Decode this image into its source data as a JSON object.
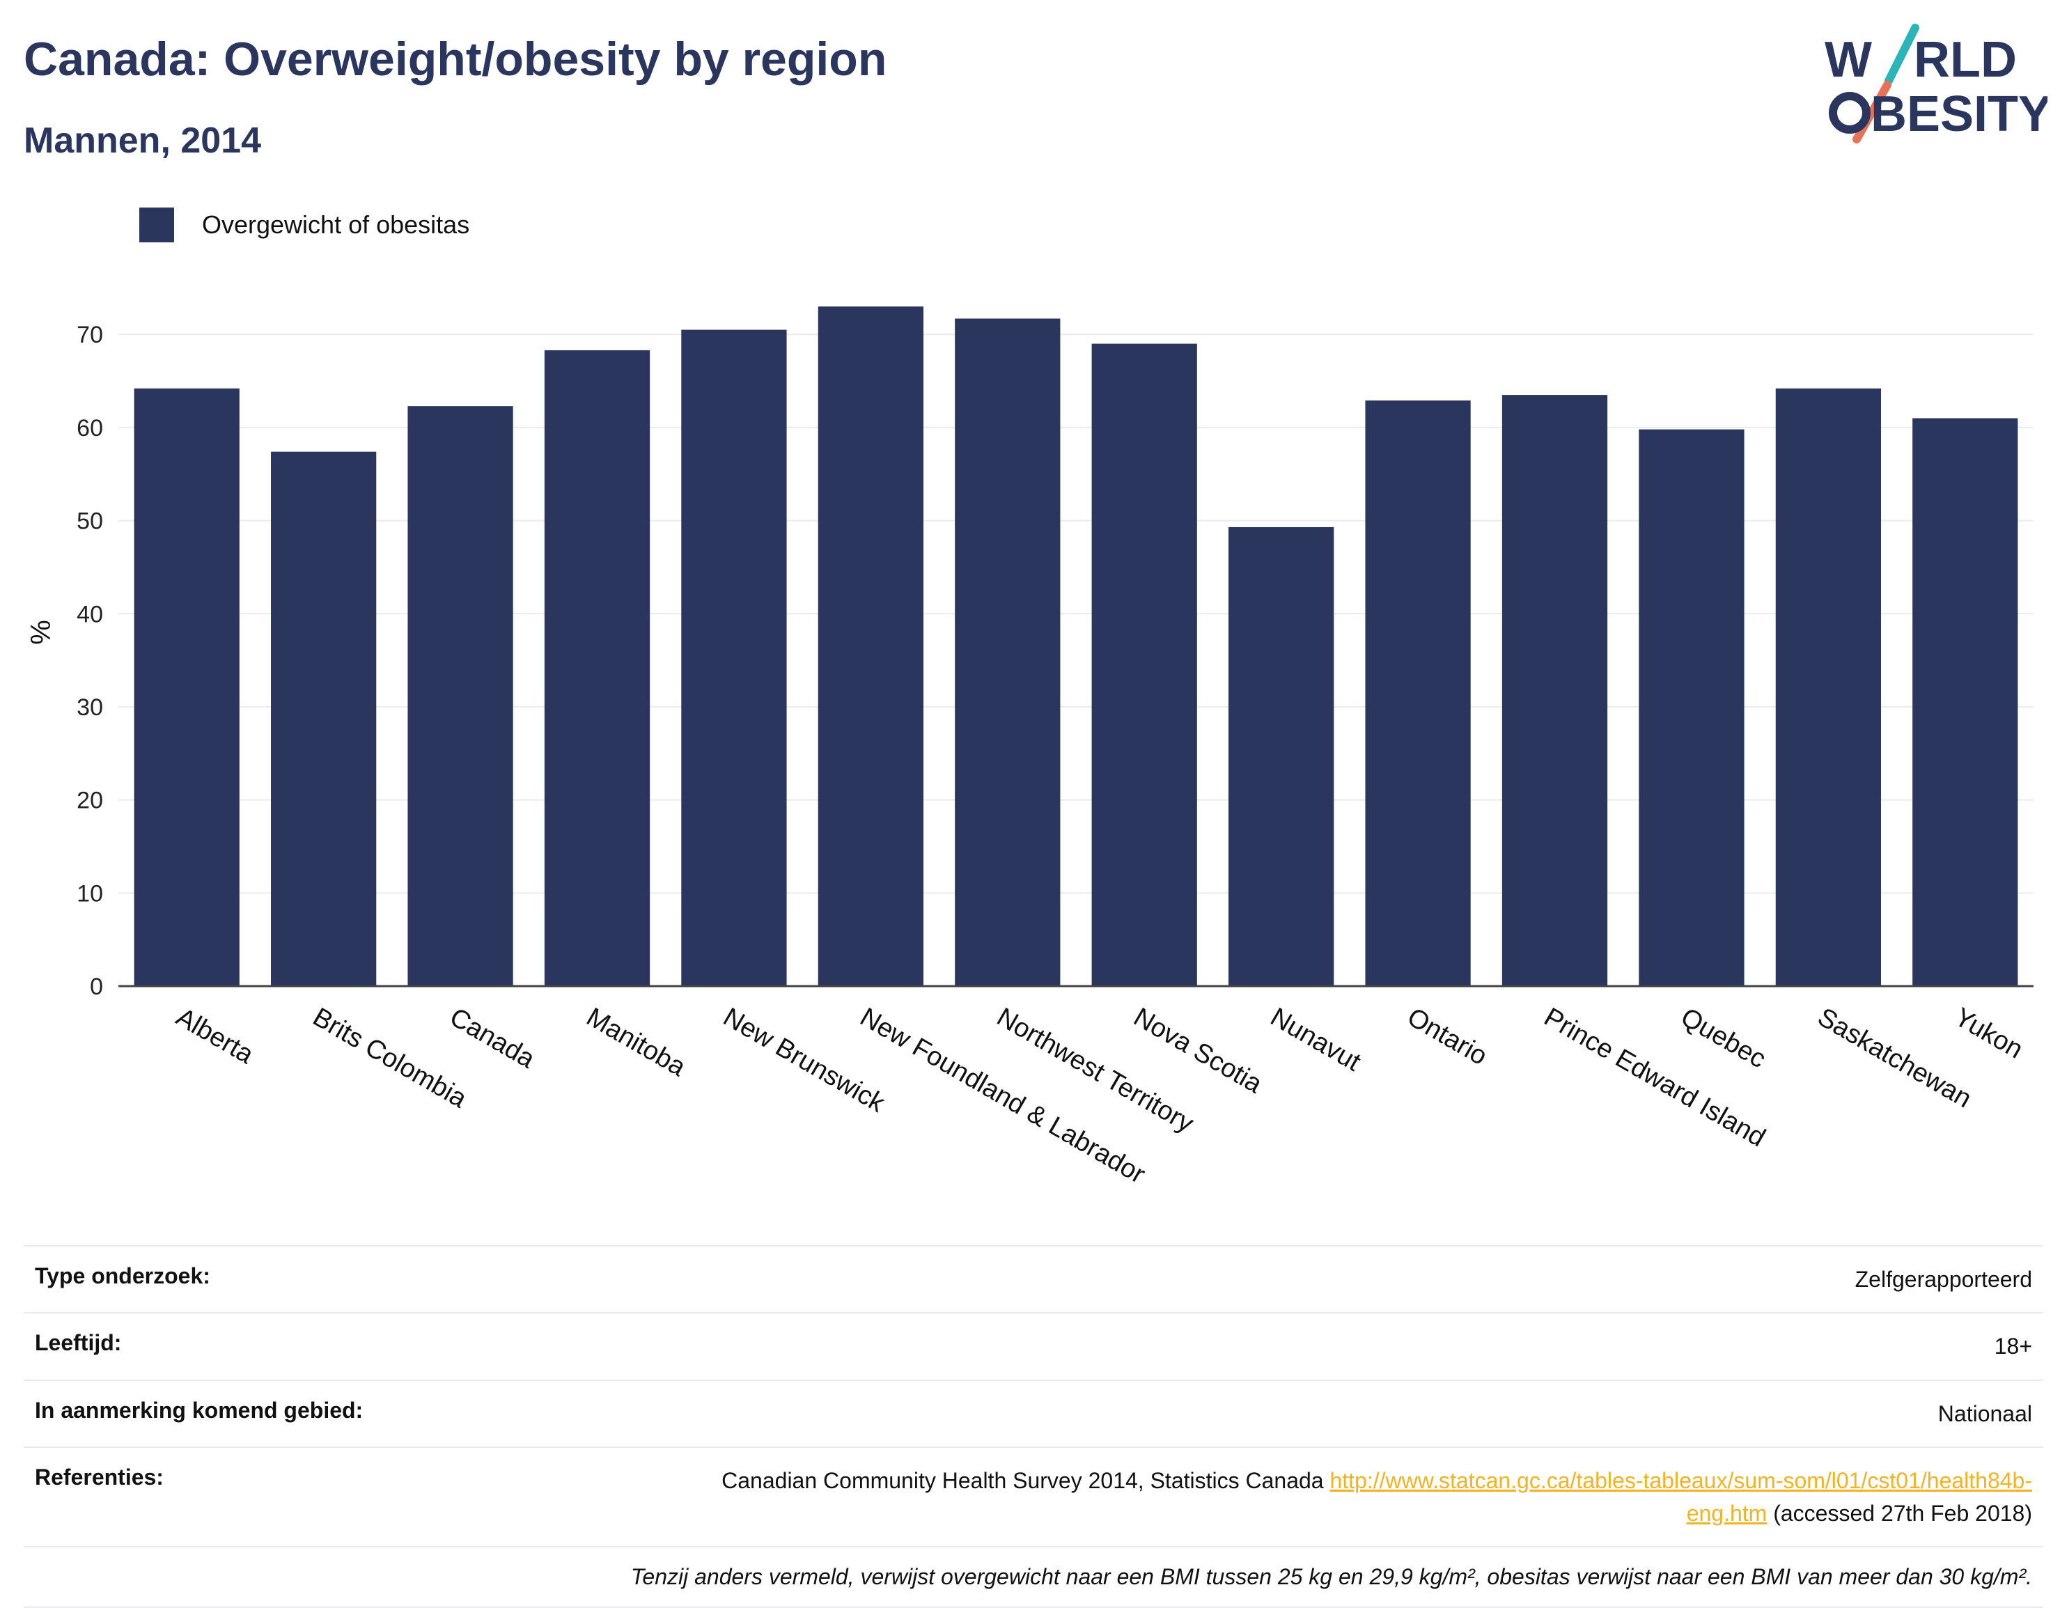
{
  "header": {
    "title": "Canada: Overweight/obesity by region",
    "subtitle": "Mannen, 2014"
  },
  "logo": {
    "line1_a": "W",
    "line1_b": "RLD",
    "line2_a": "",
    "line2_b": "BESITY",
    "accent_teal": "#2bb5b8",
    "accent_coral": "#e8715a",
    "text_color": "#2b365f"
  },
  "legend": {
    "label": "Overgewicht of obesitas",
    "color": "#2b365f"
  },
  "chart_data": {
    "type": "bar",
    "ylabel": "%",
    "ylim": [
      0,
      76
    ],
    "yticks": [
      0,
      10,
      20,
      30,
      40,
      50,
      60,
      70
    ],
    "grid": true,
    "legend_position": "top-left",
    "bar_color": "#2b365f",
    "categories": [
      "Alberta",
      "Brits Colombia",
      "Canada",
      "Manitoba",
      "New Brunswick",
      "New Foundland & Labrador",
      "Northwest Territory",
      "Nova Scotia",
      "Nunavut",
      "Ontario",
      "Prince Edward Island",
      "Quebec",
      "Saskatchewan",
      "Yukon"
    ],
    "series": [
      {
        "name": "Overgewicht of obesitas",
        "values": [
          64.2,
          57.4,
          62.3,
          68.3,
          70.5,
          73.0,
          71.7,
          69.0,
          49.3,
          62.9,
          63.5,
          59.8,
          64.2,
          61.0
        ]
      }
    ]
  },
  "info": {
    "type_label": "Type onderzoek:",
    "type_value": "Zelfgerapporteerd",
    "age_label": "Leeftijd:",
    "age_value": "18+",
    "area_label": "In aanmerking komend gebied:",
    "area_value": "Nationaal",
    "ref_label": "Referenties:",
    "ref_text": "Canadian Community Health Survey 2014, Statistics Canada",
    "ref_link_part1": "http://www.statcan.gc.ca/tables-tableaux/sum-som/l01/cst01/health84b-",
    "ref_link_part2": "eng.htm",
    "ref_suffix": "(accessed 27th Feb 2018)",
    "note": "Tenzij anders vermeld, verwijst overgewicht naar een BMI tussen 25 kg en 29,9 kg/m², obesitas verwijst naar een BMI van meer dan 30 kg/m²."
  }
}
